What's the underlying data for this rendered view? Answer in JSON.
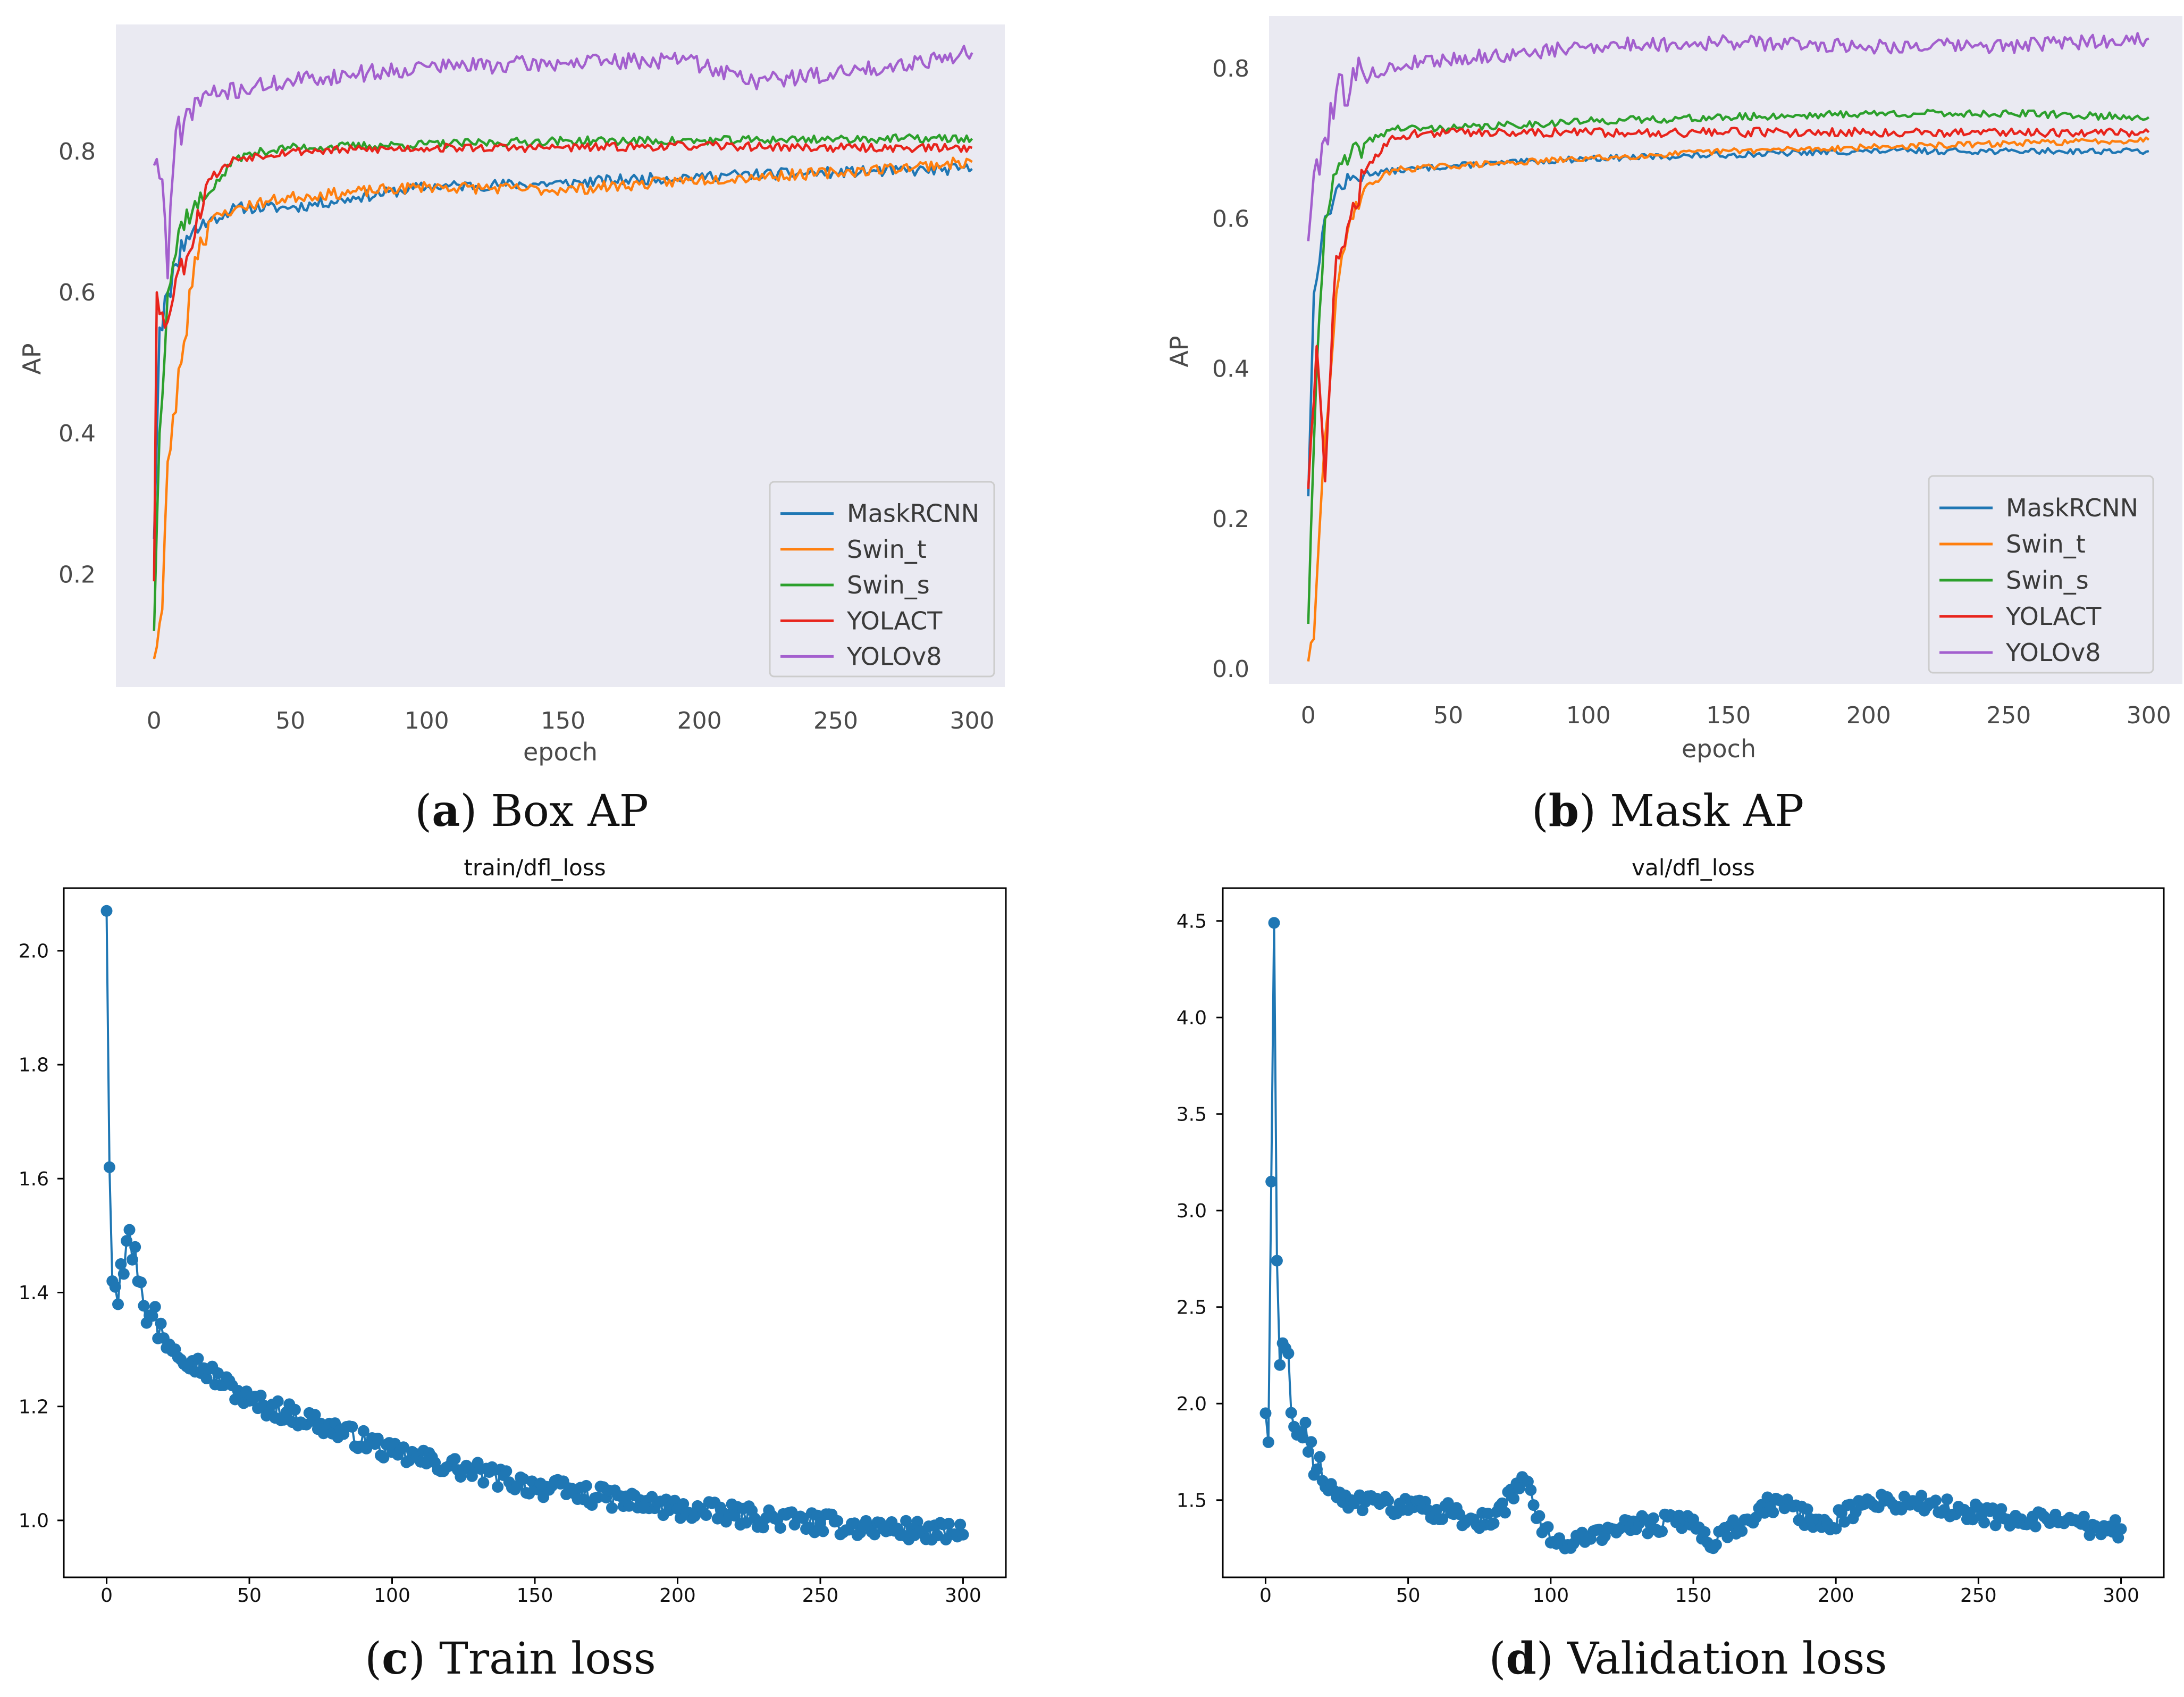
{
  "chart_data": [
    {
      "id": "a",
      "type": "line",
      "style": "seaborn",
      "caption": {
        "letter": "a",
        "text": " Box AP"
      },
      "title": "",
      "xlabel": "epoch",
      "ylabel": "AP",
      "xlim": [
        -14,
        312
      ],
      "ylim": [
        0.04,
        0.98
      ],
      "xticks": [
        0,
        50,
        100,
        150,
        200,
        250,
        300
      ],
      "yticks": [
        0.2,
        0.4,
        0.6,
        0.8
      ],
      "ytick_labels": [
        "0.2",
        "0.4",
        "0.6",
        "0.8"
      ],
      "legend": "lower-right",
      "series": [
        {
          "name": "MaskRCNN",
          "color": "#1f77b4",
          "seed": 11,
          "noise": 0.008,
          "points": [
            [
              0,
              0.25
            ],
            [
              2,
              0.55
            ],
            [
              5,
              0.6
            ],
            [
              8,
              0.64
            ],
            [
              12,
              0.68
            ],
            [
              20,
              0.7
            ],
            [
              30,
              0.72
            ],
            [
              50,
              0.72
            ],
            [
              75,
              0.735
            ],
            [
              100,
              0.75
            ],
            [
              150,
              0.755
            ],
            [
              200,
              0.765
            ],
            [
              250,
              0.77
            ],
            [
              300,
              0.775
            ]
          ]
        },
        {
          "name": "Swin_t",
          "color": "#ff7f0e",
          "seed": 23,
          "noise": 0.008,
          "points": [
            [
              0,
              0.08
            ],
            [
              3,
              0.15
            ],
            [
              5,
              0.36
            ],
            [
              10,
              0.5
            ],
            [
              15,
              0.65
            ],
            [
              20,
              0.7
            ],
            [
              30,
              0.72
            ],
            [
              50,
              0.735
            ],
            [
              100,
              0.75
            ],
            [
              150,
              0.745
            ],
            [
              200,
              0.76
            ],
            [
              250,
              0.77
            ],
            [
              300,
              0.785
            ]
          ]
        },
        {
          "name": "Swin_s",
          "color": "#2ca02c",
          "seed": 37,
          "noise": 0.006,
          "points": [
            [
              0,
              0.12
            ],
            [
              2,
              0.4
            ],
            [
              5,
              0.6
            ],
            [
              10,
              0.7
            ],
            [
              20,
              0.74
            ],
            [
              30,
              0.79
            ],
            [
              40,
              0.8
            ],
            [
              50,
              0.805
            ],
            [
              100,
              0.81
            ],
            [
              150,
              0.815
            ],
            [
              200,
              0.815
            ],
            [
              250,
              0.818
            ],
            [
              300,
              0.818
            ]
          ]
        },
        {
          "name": "YOLACT",
          "color": "#e8241c",
          "seed": 53,
          "noise": 0.006,
          "points": [
            [
              0,
              0.19
            ],
            [
              1,
              0.6
            ],
            [
              4,
              0.55
            ],
            [
              8,
              0.62
            ],
            [
              12,
              0.65
            ],
            [
              20,
              0.76
            ],
            [
              30,
              0.79
            ],
            [
              50,
              0.8
            ],
            [
              100,
              0.805
            ],
            [
              150,
              0.805
            ],
            [
              200,
              0.808
            ],
            [
              250,
              0.805
            ],
            [
              300,
              0.805
            ]
          ]
        },
        {
          "name": "YOLOv8",
          "color": "#a35fce",
          "seed": 71,
          "noise": 0.012,
          "points": [
            [
              0,
              0.78
            ],
            [
              3,
              0.76
            ],
            [
              5,
              0.62
            ],
            [
              8,
              0.83
            ],
            [
              12,
              0.86
            ],
            [
              20,
              0.88
            ],
            [
              50,
              0.9
            ],
            [
              75,
              0.91
            ],
            [
              100,
              0.92
            ],
            [
              150,
              0.925
            ],
            [
              195,
              0.93
            ],
            [
              220,
              0.9
            ],
            [
              250,
              0.91
            ],
            [
              300,
              0.94
            ]
          ]
        }
      ]
    },
    {
      "id": "b",
      "type": "line",
      "style": "seaborn",
      "caption": {
        "letter": "b",
        "text": " Mask AP"
      },
      "title": "",
      "xlabel": "epoch",
      "ylabel": "AP",
      "xlim": [
        -14,
        312
      ],
      "ylim": [
        -0.02,
        0.87
      ],
      "xticks": [
        0,
        50,
        100,
        150,
        200,
        250,
        300
      ],
      "yticks": [
        0.0,
        0.2,
        0.4,
        0.6,
        0.8
      ],
      "ytick_labels": [
        "0.0",
        "0.2",
        "0.4",
        "0.6",
        "0.8"
      ],
      "legend": "lower-right",
      "series": [
        {
          "name": "MaskRCNN",
          "color": "#1f77b4",
          "seed": 13,
          "noise": 0.004,
          "points": [
            [
              0,
              0.23
            ],
            [
              2,
              0.5
            ],
            [
              5,
              0.58
            ],
            [
              10,
              0.64
            ],
            [
              20,
              0.66
            ],
            [
              50,
              0.67
            ],
            [
              100,
              0.68
            ],
            [
              150,
              0.685
            ],
            [
              200,
              0.69
            ],
            [
              250,
              0.69
            ],
            [
              300,
              0.69
            ]
          ]
        },
        {
          "name": "Swin_t",
          "color": "#ff7f0e",
          "seed": 29,
          "noise": 0.004,
          "points": [
            [
              0,
              0.01
            ],
            [
              2,
              0.04
            ],
            [
              5,
              0.25
            ],
            [
              10,
              0.5
            ],
            [
              15,
              0.6
            ],
            [
              20,
              0.64
            ],
            [
              30,
              0.665
            ],
            [
              50,
              0.67
            ],
            [
              100,
              0.68
            ],
            [
              150,
              0.69
            ],
            [
              200,
              0.695
            ],
            [
              250,
              0.7
            ],
            [
              300,
              0.705
            ]
          ]
        },
        {
          "name": "Swin_s",
          "color": "#2ca02c",
          "seed": 41,
          "noise": 0.005,
          "points": [
            [
              0,
              0.06
            ],
            [
              3,
              0.4
            ],
            [
              6,
              0.6
            ],
            [
              10,
              0.66
            ],
            [
              20,
              0.7
            ],
            [
              30,
              0.72
            ],
            [
              50,
              0.72
            ],
            [
              100,
              0.73
            ],
            [
              150,
              0.735
            ],
            [
              200,
              0.74
            ],
            [
              250,
              0.74
            ],
            [
              300,
              0.735
            ]
          ]
        },
        {
          "name": "YOLACT",
          "color": "#e8241c",
          "seed": 59,
          "noise": 0.006,
          "points": [
            [
              0,
              0.24
            ],
            [
              3,
              0.43
            ],
            [
              6,
              0.25
            ],
            [
              10,
              0.55
            ],
            [
              15,
              0.6
            ],
            [
              20,
              0.66
            ],
            [
              30,
              0.71
            ],
            [
              50,
              0.715
            ],
            [
              100,
              0.715
            ],
            [
              150,
              0.715
            ],
            [
              200,
              0.715
            ],
            [
              250,
              0.715
            ],
            [
              300,
              0.715
            ]
          ]
        },
        {
          "name": "YOLOv8",
          "color": "#a35fce",
          "seed": 79,
          "noise": 0.01,
          "points": [
            [
              0,
              0.57
            ],
            [
              2,
              0.66
            ],
            [
              5,
              0.7
            ],
            [
              10,
              0.77
            ],
            [
              20,
              0.79
            ],
            [
              40,
              0.81
            ],
            [
              80,
              0.82
            ],
            [
              100,
              0.83
            ],
            [
              150,
              0.835
            ],
            [
              200,
              0.83
            ],
            [
              250,
              0.83
            ],
            [
              300,
              0.84
            ]
          ]
        }
      ]
    },
    {
      "id": "c",
      "type": "line",
      "style": "matplotlib",
      "caption": {
        "letter": "c",
        "text": " Train loss"
      },
      "title": "train/dfl_loss",
      "xlabel": "",
      "ylabel": "",
      "xlim": [
        -15,
        315
      ],
      "ylim": [
        0.9,
        2.11
      ],
      "xticks": [
        0,
        50,
        100,
        150,
        200,
        250,
        300
      ],
      "yticks": [
        1.0,
        1.2,
        1.4,
        1.6,
        1.8,
        2.0
      ],
      "ytick_labels": [
        "1.0",
        "1.2",
        "1.4",
        "1.6",
        "1.8",
        "2.0"
      ],
      "legend": "none",
      "markers": true,
      "series": [
        {
          "name": "train/dfl_loss",
          "color": "#1f77b4",
          "seed": 97,
          "noise": 0.018,
          "points": [
            [
              0,
              2.07
            ],
            [
              1,
              1.62
            ],
            [
              2,
              1.42
            ],
            [
              3,
              1.41
            ],
            [
              5,
              1.45
            ],
            [
              8,
              1.51
            ],
            [
              10,
              1.48
            ],
            [
              15,
              1.36
            ],
            [
              20,
              1.32
            ],
            [
              30,
              1.28
            ],
            [
              50,
              1.21
            ],
            [
              75,
              1.17
            ],
            [
              100,
              1.12
            ],
            [
              125,
              1.09
            ],
            [
              150,
              1.06
            ],
            [
              175,
              1.04
            ],
            [
              200,
              1.02
            ],
            [
              250,
              0.995
            ],
            [
              300,
              0.975
            ]
          ]
        }
      ]
    },
    {
      "id": "d",
      "type": "line",
      "style": "matplotlib",
      "caption": {
        "letter": "d",
        "text": " Validation loss"
      },
      "title": "val/dfl_loss",
      "xlabel": "",
      "ylabel": "",
      "xlim": [
        -15,
        315
      ],
      "ylim": [
        1.1,
        4.67
      ],
      "xticks": [
        0,
        50,
        100,
        150,
        200,
        250,
        300
      ],
      "yticks": [
        1.5,
        2.0,
        2.5,
        3.0,
        3.5,
        4.0,
        4.5
      ],
      "ytick_labels": [
        "1.5",
        "2.0",
        "2.5",
        "3.0",
        "3.5",
        "4.0",
        "4.5"
      ],
      "legend": "none",
      "markers": true,
      "series": [
        {
          "name": "val/dfl_loss",
          "color": "#1f77b4",
          "seed": 131,
          "noise": 0.05,
          "points": [
            [
              0,
              1.95
            ],
            [
              1,
              1.8
            ],
            [
              3,
              4.49
            ],
            [
              4,
              2.74
            ],
            [
              5,
              2.2
            ],
            [
              8,
              2.26
            ],
            [
              10,
              1.88
            ],
            [
              15,
              1.75
            ],
            [
              20,
              1.6
            ],
            [
              30,
              1.5
            ],
            [
              40,
              1.48
            ],
            [
              60,
              1.45
            ],
            [
              80,
              1.38
            ],
            [
              90,
              1.62
            ],
            [
              100,
              1.28
            ],
            [
              110,
              1.3
            ],
            [
              125,
              1.36
            ],
            [
              150,
              1.4
            ],
            [
              155,
              1.28
            ],
            [
              180,
              1.5
            ],
            [
              195,
              1.36
            ],
            [
              210,
              1.48
            ],
            [
              225,
              1.5
            ],
            [
              245,
              1.45
            ],
            [
              260,
              1.4
            ],
            [
              280,
              1.38
            ],
            [
              300,
              1.35
            ]
          ]
        }
      ]
    }
  ]
}
